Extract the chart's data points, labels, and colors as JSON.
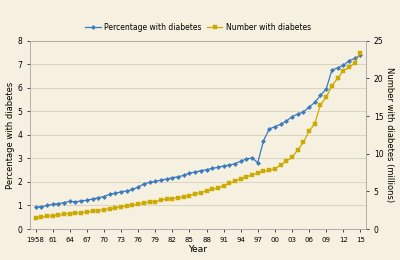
{
  "title": "",
  "xlabel": "Year",
  "ylabel_left": "Percentage with diabetes",
  "ylabel_right": "Number with diabetes (millions)",
  "bg_color": "#f5f0df",
  "line1_color": "#3a7bbf",
  "line2_color": "#ccaa00",
  "legend_label1": "Percentage with diabetes",
  "legend_label2": "Number with diabetes",
  "years": [
    1958,
    1959,
    1960,
    1961,
    1962,
    1963,
    1964,
    1965,
    1966,
    1967,
    1968,
    1969,
    1970,
    1971,
    1972,
    1973,
    1974,
    1975,
    1976,
    1977,
    1978,
    1979,
    1980,
    1981,
    1982,
    1983,
    1984,
    1985,
    1986,
    1987,
    1988,
    1989,
    1990,
    1991,
    1992,
    1993,
    1994,
    1995,
    1996,
    1997,
    1998,
    1999,
    2000,
    2001,
    2002,
    2003,
    2004,
    2005,
    2006,
    2007,
    2008,
    2009,
    2010,
    2011,
    2012,
    2013,
    2014,
    2015
  ],
  "percentage": [
    0.93,
    0.95,
    1.0,
    1.05,
    1.08,
    1.12,
    1.18,
    1.15,
    1.2,
    1.22,
    1.28,
    1.33,
    1.38,
    1.48,
    1.52,
    1.58,
    1.62,
    1.68,
    1.78,
    1.92,
    1.98,
    2.02,
    2.08,
    2.12,
    2.18,
    2.22,
    2.28,
    2.38,
    2.42,
    2.48,
    2.52,
    2.58,
    2.62,
    2.68,
    2.72,
    2.78,
    2.88,
    2.98,
    3.02,
    2.82,
    3.75,
    4.25,
    4.35,
    4.45,
    4.58,
    4.78,
    4.88,
    4.98,
    5.18,
    5.38,
    5.68,
    5.95,
    6.75,
    6.85,
    6.95,
    7.15,
    7.25,
    7.38
  ],
  "number": [
    1.5,
    1.6,
    1.7,
    1.75,
    1.85,
    1.95,
    2.05,
    2.1,
    2.18,
    2.25,
    2.35,
    2.45,
    2.55,
    2.7,
    2.8,
    2.95,
    3.05,
    3.15,
    3.3,
    3.45,
    3.55,
    3.65,
    3.85,
    3.95,
    4.05,
    4.15,
    4.25,
    4.45,
    4.65,
    4.85,
    5.05,
    5.25,
    5.45,
    5.75,
    6.05,
    6.35,
    6.65,
    6.95,
    7.15,
    7.45,
    7.65,
    7.8,
    8.0,
    8.5,
    9.0,
    9.5,
    10.5,
    11.5,
    13.0,
    14.0,
    16.5,
    17.5,
    19.0,
    20.0,
    21.0,
    21.5,
    22.0,
    23.4
  ],
  "ylim_left": [
    0,
    8
  ],
  "ylim_right": [
    0,
    25
  ],
  "yticks_left": [
    0,
    1,
    2,
    3,
    4,
    5,
    6,
    7,
    8
  ],
  "yticks_right": [
    0,
    5,
    10,
    15,
    20,
    25
  ],
  "xticks": [
    1958,
    1961,
    1964,
    1967,
    1970,
    1973,
    1976,
    1979,
    1982,
    1985,
    1988,
    1991,
    1994,
    1997,
    2000,
    2003,
    2006,
    2009,
    2012,
    2015
  ],
  "xticklabels": [
    "1958",
    "61",
    "64",
    "67",
    "70",
    "73",
    "76",
    "79",
    "82",
    "85",
    "88",
    "91",
    "94",
    "97",
    "00",
    "03",
    "06",
    "09",
    "12",
    "15"
  ],
  "figsize": [
    4.0,
    2.6
  ],
  "dpi": 100
}
